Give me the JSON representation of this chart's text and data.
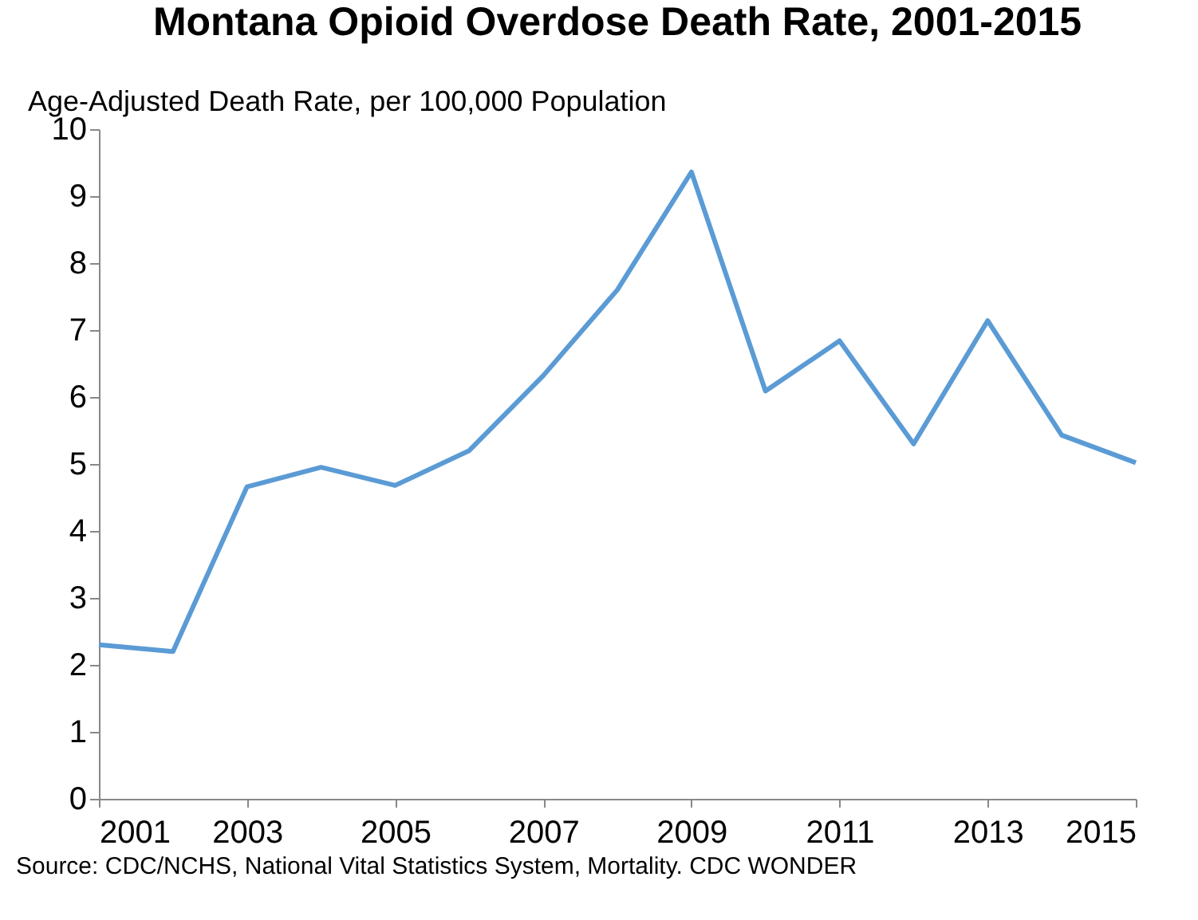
{
  "chart_data": {
    "type": "line",
    "title": "Montana Opioid Overdose Death Rate, 2001-2015",
    "ylabel": "Age-Adjusted Death Rate, per 100,000 Population",
    "x": [
      2001,
      2002,
      2003,
      2004,
      2005,
      2006,
      2007,
      2008,
      2009,
      2010,
      2011,
      2012,
      2013,
      2014,
      2015
    ],
    "series": [
      {
        "color": "#5b9bd5",
        "values": [
          2.3,
          2.2,
          4.66,
          4.95,
          4.68,
          5.2,
          6.32,
          7.6,
          9.36,
          6.09,
          6.84,
          5.3,
          7.14,
          5.43,
          5.02
        ]
      }
    ],
    "xlim": [
      2001,
      2015
    ],
    "xticks": [
      2001,
      2003,
      2005,
      2007,
      2009,
      2011,
      2013,
      2015
    ],
    "ylim": [
      0,
      10
    ],
    "yticks": [
      0,
      1,
      2,
      3,
      4,
      5,
      6,
      7,
      8,
      9,
      10
    ],
    "grid": false,
    "marker": "none",
    "line_style": "solid",
    "annotations": [
      "Source:  CDC/NCHS, National Vital Statistics System, Mortality. CDC WONDER"
    ]
  }
}
